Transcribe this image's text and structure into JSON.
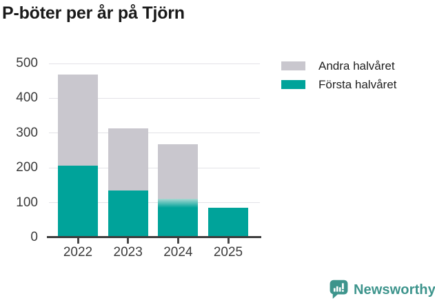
{
  "title": "P-böter per år på Tjörn",
  "chart_data": {
    "type": "bar",
    "stacked": true,
    "title": "P-böter per år på Tjörn",
    "categories": [
      "2022",
      "2023",
      "2024",
      "2025"
    ],
    "series": [
      {
        "name": "Andra halvåret",
        "color": "#c9c7ce",
        "values": [
          262,
          179,
          155,
          0
        ]
      },
      {
        "name": "Första halvåret",
        "color": "#00a39a",
        "values": [
          206,
          135,
          112,
          86
        ]
      }
    ],
    "totals": [
      468,
      314,
      267,
      86
    ],
    "xlabel": "",
    "ylabel": "",
    "ylim": [
      0,
      500
    ],
    "yticks": [
      0,
      100,
      200,
      300,
      400,
      500
    ],
    "grid": "horizontal",
    "legend_position": "top-right",
    "gradient_boundary_categories": [
      "2024"
    ]
  },
  "branding": {
    "logo_text": "Newsworthy",
    "logo_color": "#3d948c"
  }
}
